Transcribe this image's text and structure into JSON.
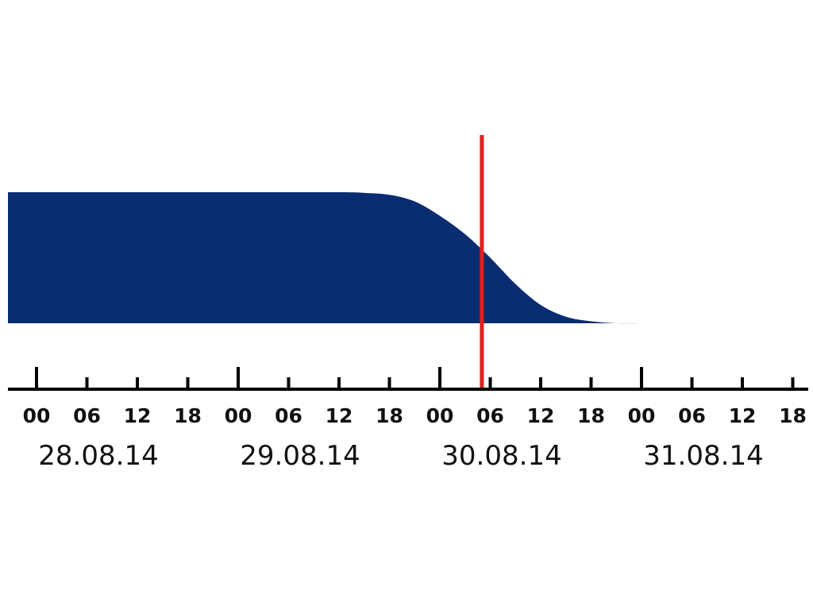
{
  "chart_data": {
    "type": "area",
    "x_unit": "date-time",
    "x_start": "28.08.14 00",
    "x_end": "31.08.14 18",
    "dates": [
      "28.08.14",
      "29.08.14",
      "30.08.14",
      "31.08.14"
    ],
    "hour_ticks": [
      "00",
      "06",
      "12",
      "18"
    ],
    "series": [
      {
        "color": "#0a2d72",
        "points": [
          {
            "x": "27.08.14 21",
            "y": 1.0
          },
          {
            "x": "28.08.14 00",
            "y": 1.0
          },
          {
            "x": "28.08.14 12",
            "y": 1.0
          },
          {
            "x": "29.08.14 00",
            "y": 1.0
          },
          {
            "x": "29.08.14 12",
            "y": 1.0
          },
          {
            "x": "29.08.14 15",
            "y": 0.995
          },
          {
            "x": "29.08.14 18",
            "y": 0.98
          },
          {
            "x": "29.08.14 21",
            "y": 0.93
          },
          {
            "x": "30.08.14 00",
            "y": 0.82
          },
          {
            "x": "30.08.14 03",
            "y": 0.68
          },
          {
            "x": "30.08.14 06",
            "y": 0.5
          },
          {
            "x": "30.08.14 09",
            "y": 0.3
          },
          {
            "x": "30.08.14 12",
            "y": 0.14
          },
          {
            "x": "30.08.14 15",
            "y": 0.05
          },
          {
            "x": "30.08.14 18",
            "y": 0.015
          },
          {
            "x": "30.08.14 21",
            "y": 0.0
          },
          {
            "x": "31.08.14 00",
            "y": 0.0
          },
          {
            "x": "31.08.14 03",
            "y": 0.0
          }
        ]
      }
    ],
    "marker": {
      "x": "30.08.14 05",
      "color": "#e0201b"
    },
    "grid": false,
    "legend": "none"
  }
}
